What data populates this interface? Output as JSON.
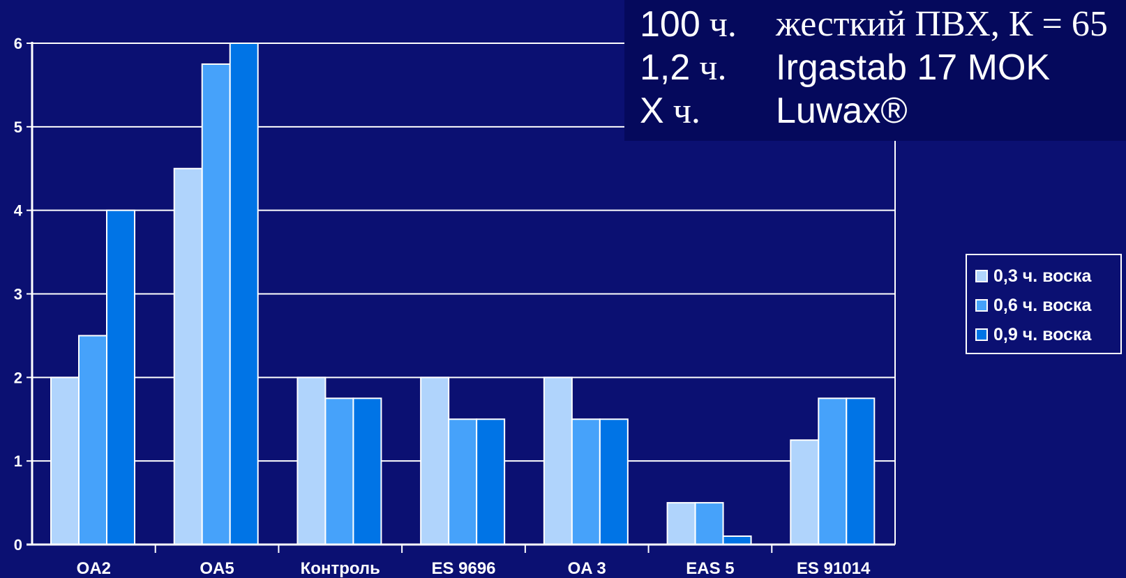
{
  "chart_data": {
    "type": "bar",
    "categories": [
      "OA2",
      "OA5",
      "Контроль",
      "ES 9696",
      "OA 3",
      "EAS 5",
      "ES 91014"
    ],
    "series": [
      {
        "name": "0,3 ч. воска",
        "color": "#b0d4fc",
        "values": [
          2,
          4.5,
          2,
          2,
          2,
          0.5,
          1.25
        ]
      },
      {
        "name": "0,6 ч. воска",
        "color": "#46a2fa",
        "values": [
          2.5,
          5.75,
          1.75,
          1.5,
          1.5,
          0.5,
          1.75
        ]
      },
      {
        "name": "0,9 ч. воска",
        "color": "#0074e6",
        "values": [
          4,
          6,
          1.75,
          1.5,
          1.5,
          0.1,
          1.75
        ]
      }
    ],
    "ylim": [
      0,
      6
    ],
    "yticks": [
      "0",
      "1",
      "2",
      "3",
      "4",
      "5",
      "6"
    ],
    "grid": true,
    "legend_position": "right"
  },
  "recipe": [
    {
      "amount_num": "100",
      "amount_unit": " ч.",
      "desc": "жесткий ПВХ, К = 65",
      "desc_serif": true
    },
    {
      "amount_num": "1,2",
      "amount_unit": " ч.",
      "desc": "Irgastab 17 MOK",
      "desc_serif": false
    },
    {
      "amount_num": "X",
      "amount_unit": " ч.",
      "desc": "Luwax®",
      "desc_serif": false
    }
  ]
}
